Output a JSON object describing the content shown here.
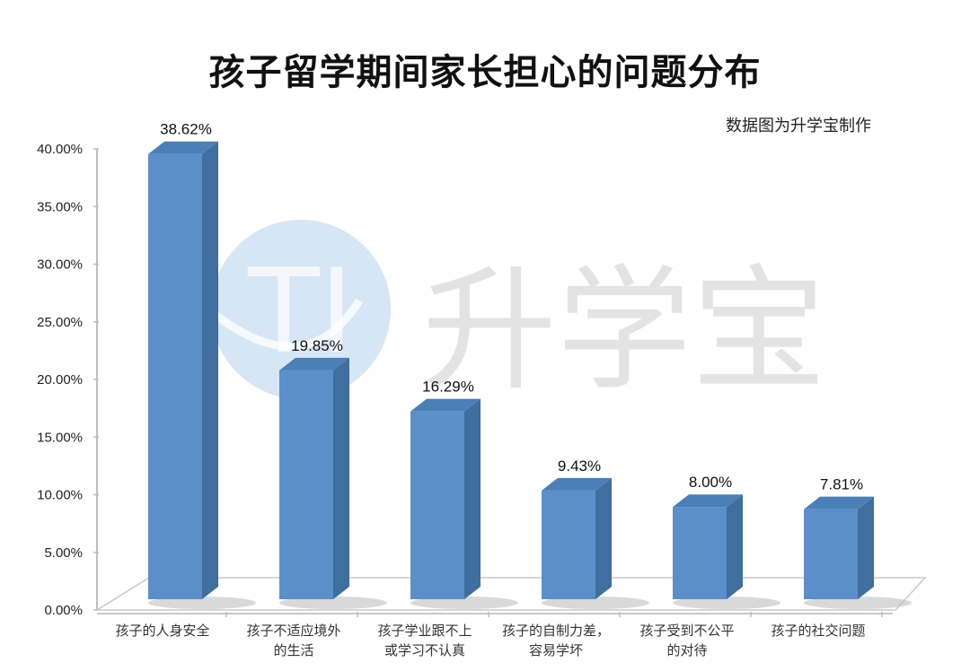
{
  "title": "孩子留学期间家长担心的问题分布",
  "credit": "数据图为升学宝制作",
  "watermark": {
    "text": "升学宝",
    "logo_letters": "TI"
  },
  "colors": {
    "bar_front": "#5b8fc9",
    "bar_side": "#3f6e9f",
    "bar_top": "#4a7fb8",
    "grid": "#cfcfcf",
    "watermark_circle": "#cfe2f3"
  },
  "chart_data": {
    "type": "bar",
    "title": "孩子留学期间家长担心的问题分布",
    "subtitle": "数据图为升学宝制作",
    "xlabel": "",
    "ylabel": "",
    "ylim": [
      0,
      40
    ],
    "yticks": [
      "0.00%",
      "5.00%",
      "10.00%",
      "15.00%",
      "20.00%",
      "25.00%",
      "30.00%",
      "35.00%",
      "40.00%"
    ],
    "categories": [
      [
        "孩子的人身安全"
      ],
      [
        "孩子不适应境外",
        "的生活"
      ],
      [
        "孩子学业跟不上",
        "或学习不认真"
      ],
      [
        "孩子的自制力差，",
        "容易学坏"
      ],
      [
        "孩子受到不公平",
        "的对待"
      ],
      [
        "孩子的社交问题"
      ]
    ],
    "values": [
      38.62,
      19.85,
      16.29,
      9.43,
      8.0,
      7.81
    ],
    "value_labels": [
      "38.62%",
      "19.85%",
      "16.29%",
      "9.43%",
      "8.00%",
      "7.81%"
    ],
    "grid": false,
    "legend": "none",
    "style": "3d-column"
  }
}
